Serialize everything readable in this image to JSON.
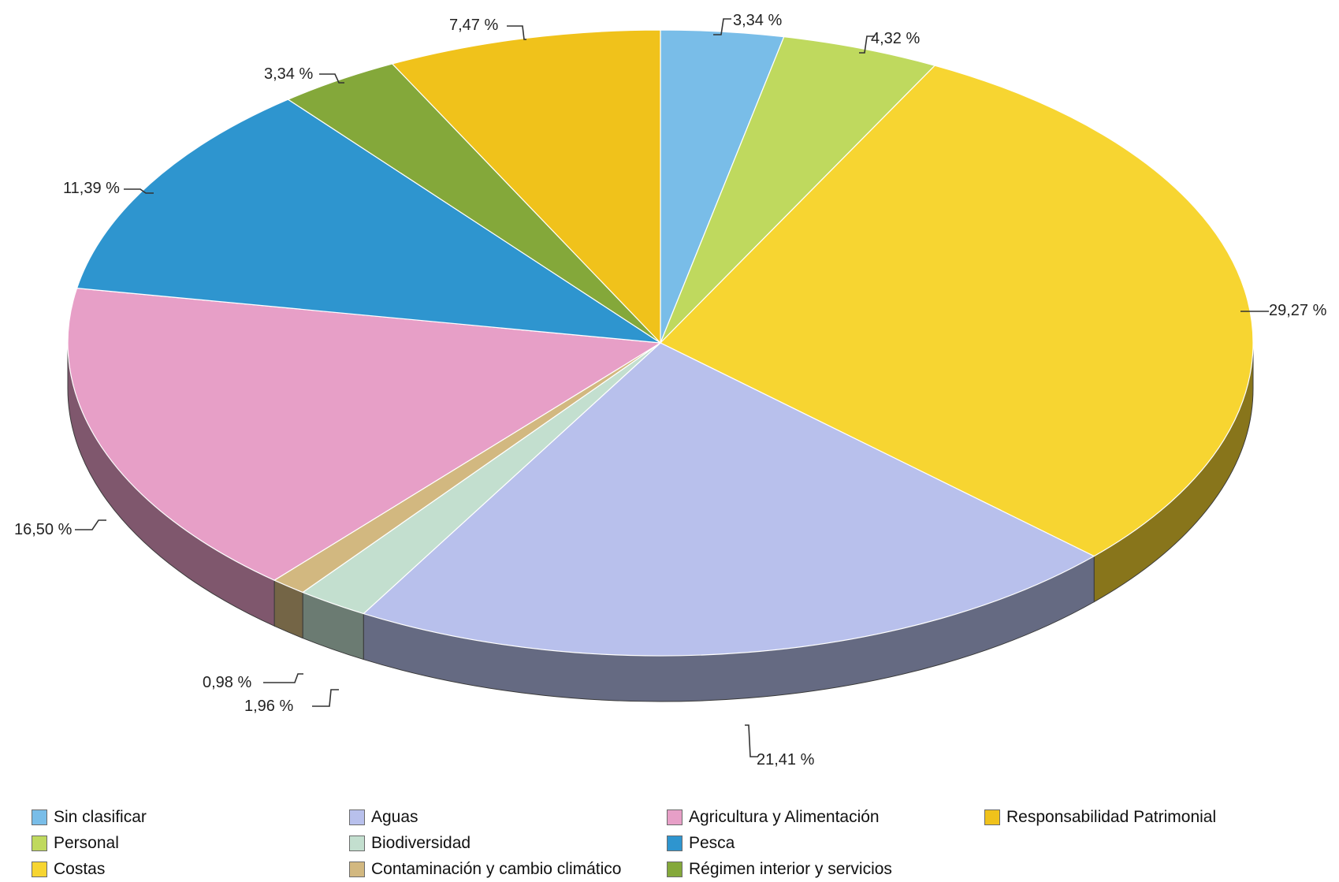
{
  "chart_data": {
    "type": "pie",
    "style": "3d",
    "slices": [
      {
        "name": "Sin clasificar",
        "value": 3.34,
        "label": "3,34  %",
        "color": "#79bde8"
      },
      {
        "name": "Personal",
        "value": 4.32,
        "label": "4,32  %",
        "color": "#bfd95e"
      },
      {
        "name": "Costas",
        "value": 29.27,
        "label": "29,27  %",
        "color": "#f7d531"
      },
      {
        "name": "Aguas",
        "value": 21.41,
        "label": "21,41  %",
        "color": "#b8c0ec"
      },
      {
        "name": "Biodiversidad",
        "value": 1.96,
        "label": "1,96  %",
        "color": "#c3dfcf"
      },
      {
        "name": "Contaminación y cambio climático",
        "value": 0.98,
        "label": "0,98  %",
        "color": "#d2b880"
      },
      {
        "name": "Agricultura y Alimentación",
        "value": 16.5,
        "label": "16,50  %",
        "color": "#e79fc7"
      },
      {
        "name": "Pesca",
        "value": 11.39,
        "label": "11,39  %",
        "color": "#2e95cf"
      },
      {
        "name": "Régimen interior y servicios",
        "value": 3.34,
        "label": "3,34  %",
        "color": "#84a83a"
      },
      {
        "name": "Responsabilidad Patrimonial",
        "value": 7.47,
        "label": "7,47  %",
        "color": "#f0c21b"
      }
    ],
    "legend_position": "bottom",
    "legend_order": [
      "Sin clasificar",
      "Personal",
      "Costas",
      "Aguas",
      "Biodiversidad",
      "Contaminación y cambio climático",
      "Agricultura y Alimentación",
      "Pesca",
      "Régimen interior y servicios",
      "Responsabilidad Patrimonial"
    ]
  }
}
